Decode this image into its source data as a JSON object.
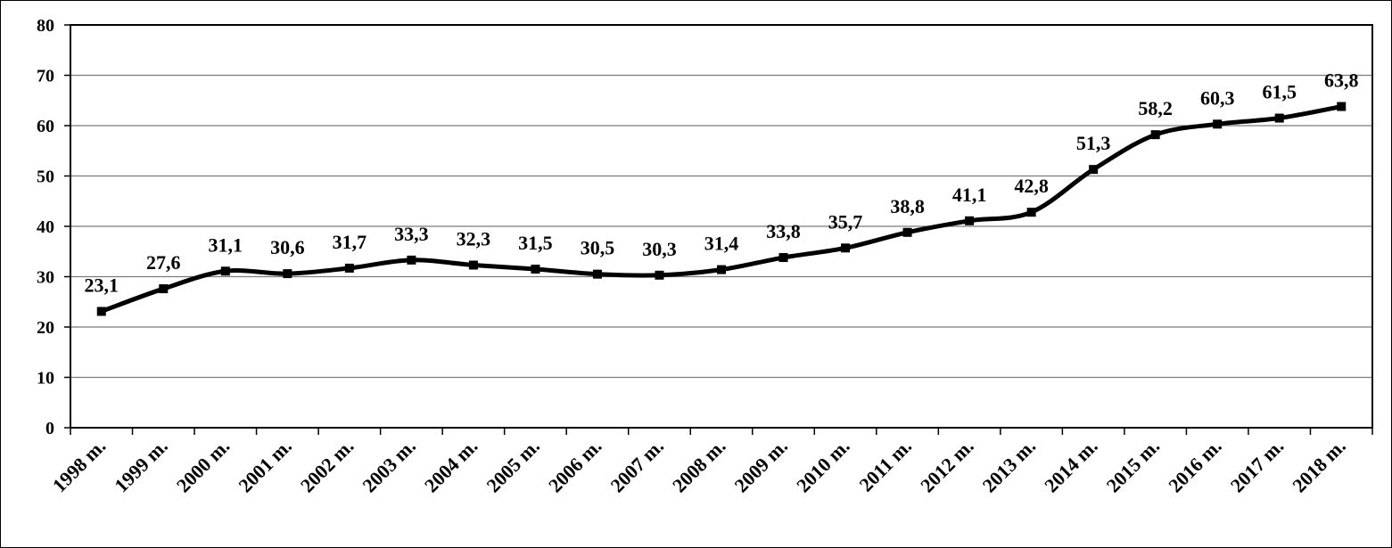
{
  "chart_data": {
    "type": "line",
    "title": "",
    "xlabel": "",
    "ylabel": "",
    "categories": [
      "1998 m.",
      "1999 m.",
      "2000 m.",
      "2001 m.",
      "2002 m.",
      "2003 m.",
      "2004 m.",
      "2005 m.",
      "2006 m.",
      "2007 m.",
      "2008 m.",
      "2009 m.",
      "2010 m.",
      "2011 m.",
      "2012 m.",
      "2013 m.",
      "2014 m.",
      "2015 m.",
      "2016 m.",
      "2017 m.",
      "2018 m."
    ],
    "series": [
      {
        "values": [
          23.1,
          27.6,
          31.1,
          30.6,
          31.7,
          33.3,
          32.3,
          31.5,
          30.5,
          30.3,
          31.4,
          33.8,
          35.7,
          38.8,
          41.1,
          42.8,
          51.3,
          58.2,
          60.3,
          61.5,
          63.8
        ],
        "labels": [
          "23,1",
          "27,6",
          "31,1",
          "30,6",
          "31,7",
          "33,3",
          "32,3",
          "31,5",
          "30,5",
          "30,3",
          "31,4",
          "33,8",
          "35,7",
          "38,8",
          "41,1",
          "42,8",
          "51,3",
          "58,2",
          "60,3",
          "61,5",
          "63,8"
        ],
        "color": "#000000",
        "marker": "square",
        "smooth": true
      }
    ],
    "ylim": [
      0,
      80
    ],
    "yticks": [
      0,
      10,
      20,
      30,
      40,
      50,
      60,
      70,
      80
    ],
    "ytick_labels": [
      "0",
      "10",
      "20",
      "30",
      "40",
      "50",
      "60",
      "70",
      "80"
    ],
    "grid": true,
    "legend": "none"
  }
}
